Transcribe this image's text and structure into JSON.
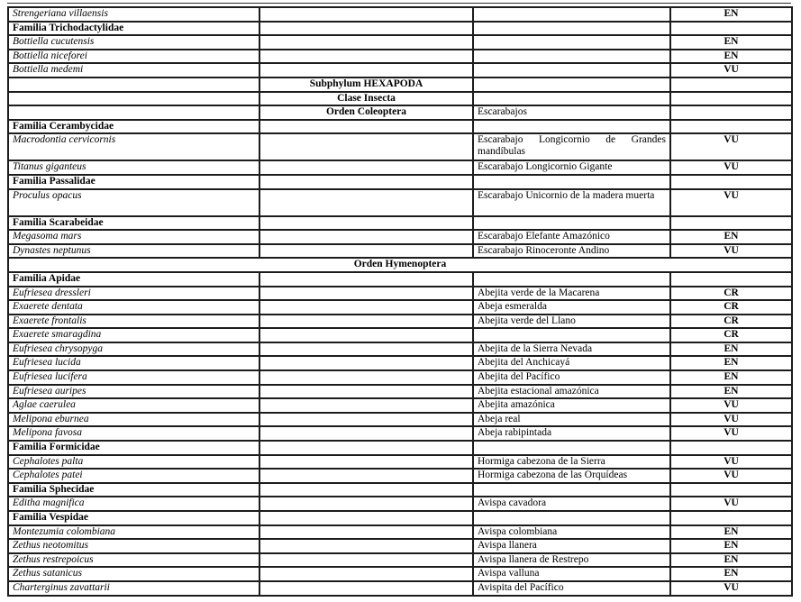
{
  "document": {
    "kind": "species-conservation-table",
    "colors": {
      "border": "#1c1c1c",
      "text": "#000000",
      "background": "#ffffff"
    },
    "status_codes_visible": [
      "EN",
      "VU",
      "CR"
    ]
  },
  "table": {
    "rows": [
      {
        "type": "species",
        "scientific": "Strengeriana villaensis",
        "common": "",
        "status": "EN"
      },
      {
        "type": "familia",
        "name": "Familia Trichodactylidae"
      },
      {
        "type": "species",
        "scientific": "Bottiella cucutensis",
        "common": "",
        "status": "EN"
      },
      {
        "type": "species",
        "scientific": "Bottiella niceforei",
        "common": "",
        "status": "EN"
      },
      {
        "type": "species",
        "scientific": "Bottiella medemi",
        "common": "",
        "status": "VU"
      },
      {
        "type": "taxon2",
        "name": "Subphylum HEXAPODA",
        "common": ""
      },
      {
        "type": "taxon2",
        "name": "Clase Insecta",
        "common": ""
      },
      {
        "type": "taxon2",
        "name": "Orden Coleoptera",
        "common": "Escarabajos"
      },
      {
        "type": "familia",
        "name": "Familia Cerambycidae"
      },
      {
        "type": "species",
        "scientific": "Macrodontia cervicornis",
        "common": "Escarabajo Longicornio de Grandes mandíbulas",
        "status": "VU",
        "tall": true
      },
      {
        "type": "species",
        "scientific": "Titanus giganteus",
        "common": "Escarabajo Longicornio Gigante",
        "status": "VU"
      },
      {
        "type": "familia",
        "name": "Familia Passalidae"
      },
      {
        "type": "species",
        "scientific": "Proculus opacus",
        "common": "Escarabajo Unicornio de la madera muerta",
        "status": "VU",
        "tall": true
      },
      {
        "type": "familia",
        "name": "Familia Scarabeidae"
      },
      {
        "type": "species",
        "scientific": "Megasoma mars",
        "common": "Escarabajo Elefante Amazónico",
        "status": "EN"
      },
      {
        "type": "species",
        "scientific": "Dynastes neptunus",
        "common": "Escarabajo Rinoceronte Andino",
        "status": "VU"
      },
      {
        "type": "taxonfull",
        "name": "Orden Hymenoptera"
      },
      {
        "type": "familia",
        "name": "Familia Apidae"
      },
      {
        "type": "species",
        "scientific": "Eufriesea dressleri",
        "common": "Abejita verde de la Macarena",
        "status": "CR"
      },
      {
        "type": "species",
        "scientific": "Exaerete dentata",
        "common": "Abeja esmeralda",
        "status": "CR"
      },
      {
        "type": "species",
        "scientific": "Exaerete frontalis",
        "common": "Abejita verde del Llano",
        "status": "CR"
      },
      {
        "type": "species",
        "scientific": "Exaerete smaragdina",
        "common": "",
        "status": "CR"
      },
      {
        "type": "species",
        "scientific": "Eufriesea chrysopyga",
        "common": "Abejita de la Sierra Nevada",
        "status": "EN"
      },
      {
        "type": "species",
        "scientific": "Eufriesea lucida",
        "common": "Abejita del Anchicayá",
        "status": "EN"
      },
      {
        "type": "species",
        "scientific": "Eufriesea lucifera",
        "common": "Abejita del Pacífico",
        "status": "EN"
      },
      {
        "type": "species",
        "scientific": "Eufriesea auripes",
        "common": "Abejita estacional amazónica",
        "status": "EN"
      },
      {
        "type": "species",
        "scientific": "Aglae caerulea",
        "common": "Abejita amazónica",
        "status": "VU"
      },
      {
        "type": "species",
        "scientific": "Melipona eburnea",
        "common": "Abeja real",
        "status": "VU"
      },
      {
        "type": "species",
        "scientific": "Melipona favosa",
        "common": "Abeja rabipintada",
        "status": "VU"
      },
      {
        "type": "familia",
        "name": "Familia Formicidae"
      },
      {
        "type": "species",
        "scientific": "Cephalotes palta",
        "common": "Hormiga cabezona de la Sierra",
        "status": "VU"
      },
      {
        "type": "species",
        "scientific": "Cephalotes patei",
        "common": "Hormiga cabezona de las Orquídeas",
        "status": "VU"
      },
      {
        "type": "familia",
        "name": "Familia Sphecidae"
      },
      {
        "type": "species",
        "scientific": "Editha magnifica",
        "common": "Avispa cavadora",
        "status": "VU"
      },
      {
        "type": "familia",
        "name": "Familia Vespidae"
      },
      {
        "type": "species",
        "scientific": "Montezumia colombiana",
        "common": "Avispa colombiana",
        "status": "EN"
      },
      {
        "type": "species",
        "scientific": "Zethus neotomitus",
        "common": "Avispa llanera",
        "status": "EN"
      },
      {
        "type": "species",
        "scientific": "Zethus restrepoicus",
        "common": "Avispa llanera de Restrepo",
        "status": "EN"
      },
      {
        "type": "species",
        "scientific": "Zethus satanicus",
        "common": "Avispa valluna",
        "status": "EN"
      },
      {
        "type": "species",
        "scientific": "Charterginus zavattarii",
        "common": "Avispita del Pacífico",
        "status": "VU"
      }
    ]
  }
}
